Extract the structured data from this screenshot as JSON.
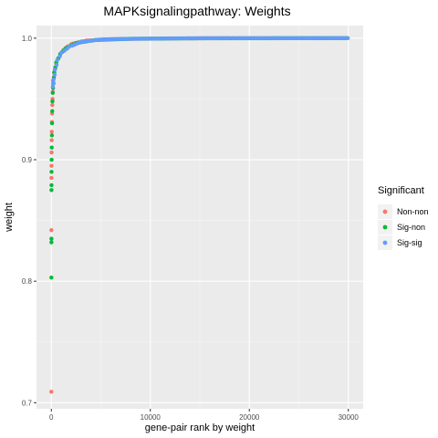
{
  "chart_data": {
    "type": "scatter",
    "title": "MAPKsignalingpathway: Weights",
    "xlabel": "gene-pair rank by weight",
    "ylabel": "weight",
    "xlim": [
      -1500,
      31500
    ],
    "ylim": [
      0.695,
      1.0104
    ],
    "x_ticks": [
      0,
      10000,
      20000,
      30000
    ],
    "x_tick_labels": [
      "0",
      "10000",
      "20000",
      "30000"
    ],
    "y_ticks": [
      0.7,
      0.8,
      0.9,
      1.0
    ],
    "y_tick_labels": [
      "0.7",
      "0.8",
      "0.9",
      "1.0"
    ],
    "grid": true,
    "legend": {
      "title": "Significant",
      "placement": "right"
    },
    "series": [
      {
        "name": "Non-non",
        "color": "#F8766D",
        "points": [
          [
            3,
            0.709
          ],
          [
            8,
            0.842
          ],
          [
            12,
            0.885
          ],
          [
            18,
            0.895
          ],
          [
            25,
            0.906
          ],
          [
            35,
            0.916
          ],
          [
            45,
            0.923
          ],
          [
            60,
            0.931
          ],
          [
            75,
            0.938
          ],
          [
            95,
            0.945
          ],
          [
            120,
            0.95
          ],
          [
            150,
            0.956
          ],
          [
            180,
            0.962
          ],
          [
            250,
            0.968
          ],
          [
            400,
            0.975
          ],
          [
            700,
            0.983
          ],
          [
            1200,
            0.99
          ],
          [
            2000,
            0.995
          ],
          [
            3500,
            0.998
          ],
          [
            6000,
            0.9992
          ],
          [
            12000,
            0.9998
          ],
          [
            20000,
            1.0
          ],
          [
            29800,
            1.0
          ]
        ]
      },
      {
        "name": "Sig-non",
        "color": "#00BA38",
        "points": [
          [
            5,
            0.803
          ],
          [
            9,
            0.832
          ],
          [
            11,
            0.835
          ],
          [
            14,
            0.875
          ],
          [
            16,
            0.879
          ],
          [
            20,
            0.89
          ],
          [
            28,
            0.9
          ],
          [
            40,
            0.91
          ],
          [
            55,
            0.92
          ],
          [
            70,
            0.93
          ],
          [
            90,
            0.94
          ],
          [
            110,
            0.948
          ],
          [
            140,
            0.955
          ],
          [
            200,
            0.963
          ],
          [
            300,
            0.972
          ],
          [
            500,
            0.98
          ],
          [
            900,
            0.987
          ],
          [
            1500,
            0.992
          ],
          [
            2500,
            0.996
          ],
          [
            4500,
            0.9985
          ],
          [
            8000,
            0.9995
          ],
          [
            15000,
            0.9999
          ],
          [
            25000,
            1.0
          ],
          [
            29900,
            1.0
          ]
        ]
      },
      {
        "name": "Sig-sig",
        "color": "#619CFF",
        "points": [
          [
            150,
            0.96
          ],
          [
            220,
            0.966
          ],
          [
            350,
            0.974
          ],
          [
            600,
            0.982
          ],
          [
            1000,
            0.988
          ],
          [
            1800,
            0.993
          ],
          [
            3000,
            0.997
          ],
          [
            5000,
            0.999
          ],
          [
            9000,
            0.9996
          ],
          [
            14000,
            0.9999
          ],
          [
            18000,
            1.0
          ],
          [
            23000,
            1.0
          ],
          [
            27000,
            1.0
          ],
          [
            29950,
            1.0
          ]
        ]
      }
    ]
  }
}
